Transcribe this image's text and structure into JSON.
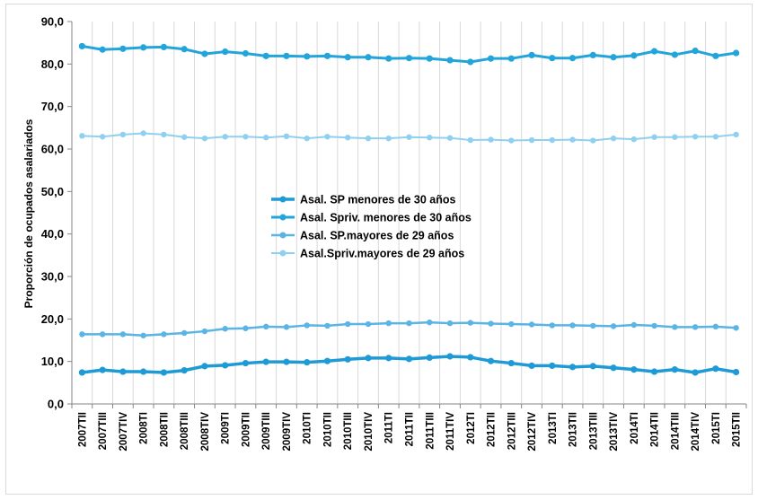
{
  "chart_data": {
    "type": "line",
    "ylabel": "Proporción de ocupados asalariados",
    "xlabel": "",
    "ylim": [
      0,
      90
    ],
    "yticks": [
      "0,0",
      "10,0",
      "20,0",
      "30,0",
      "40,0",
      "50,0",
      "60,0",
      "70,0",
      "80,0",
      "90,0"
    ],
    "grid": "vertical",
    "legend_position": "center",
    "categories": [
      "2007TII",
      "2007TIII",
      "2007TIV",
      "2008TI",
      "2008TII",
      "2008TIII",
      "2008TIV",
      "2009TI",
      "2009TII",
      "2009TIII",
      "2009TIV",
      "2010TI",
      "2010TII",
      "2010TIII",
      "2010TIV",
      "2011TI",
      "2011TII",
      "2011TIII",
      "2011TIV",
      "2012TI",
      "2012TII",
      "2012TIII",
      "2012TIV",
      "2013TI",
      "2013TII",
      "2013TIII",
      "2013TIV",
      "2014TI",
      "2014TII",
      "2014TIII",
      "2014TIV",
      "2015TI",
      "2015TII"
    ],
    "series": [
      {
        "name": "Asal. SP menores de 30 años",
        "color": "#1e9ad6",
        "stroke_width": 3.5,
        "values": [
          7.4,
          8.0,
          7.6,
          7.6,
          7.4,
          7.9,
          8.9,
          9.1,
          9.6,
          9.9,
          9.9,
          9.8,
          10.1,
          10.5,
          10.8,
          10.8,
          10.6,
          10.9,
          11.2,
          11.0,
          10.1,
          9.6,
          9.0,
          9.0,
          8.7,
          8.9,
          8.5,
          8.1,
          7.6,
          8.1,
          7.4,
          8.3,
          7.5
        ]
      },
      {
        "name": "Asal. Spriv. menores de 30 años",
        "color": "#23a5dc",
        "stroke_width": 3,
        "values": [
          84.2,
          83.4,
          83.6,
          83.9,
          84.0,
          83.5,
          82.4,
          82.9,
          82.5,
          81.9,
          81.9,
          81.8,
          81.9,
          81.6,
          81.6,
          81.3,
          81.4,
          81.3,
          80.9,
          80.5,
          81.3,
          81.3,
          82.1,
          81.4,
          81.4,
          82.1,
          81.6,
          82.0,
          83.0,
          82.2,
          83.1,
          81.9,
          82.6
        ]
      },
      {
        "name": "Asal. SP.mayores de 29 años",
        "color": "#5ab4e5",
        "stroke_width": 2.5,
        "values": [
          16.4,
          16.4,
          16.4,
          16.1,
          16.4,
          16.7,
          17.1,
          17.7,
          17.8,
          18.2,
          18.1,
          18.5,
          18.4,
          18.8,
          18.8,
          19.0,
          19.0,
          19.2,
          19.0,
          19.1,
          18.9,
          18.8,
          18.7,
          18.5,
          18.5,
          18.4,
          18.3,
          18.6,
          18.4,
          18.1,
          18.1,
          18.2,
          17.9
        ]
      },
      {
        "name": "Asal.Spriv.mayores de 29 años",
        "color": "#8fd0f0",
        "stroke_width": 2,
        "values": [
          63.1,
          62.9,
          63.4,
          63.7,
          63.4,
          62.8,
          62.5,
          62.9,
          62.9,
          62.7,
          63.0,
          62.5,
          62.9,
          62.7,
          62.5,
          62.5,
          62.8,
          62.7,
          62.6,
          62.1,
          62.2,
          62.0,
          62.1,
          62.1,
          62.2,
          62.0,
          62.5,
          62.3,
          62.8,
          62.8,
          62.9,
          62.9,
          63.4
        ]
      }
    ]
  }
}
